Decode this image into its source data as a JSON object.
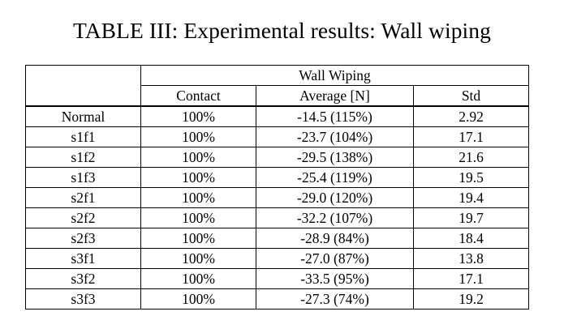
{
  "caption": "TABLE III: Experimental results: Wall wiping",
  "table": {
    "group_header": "Wall Wiping",
    "column_headers": [
      "Contact",
      "Average [N]",
      "Std"
    ],
    "rows": [
      {
        "label": "Normal",
        "contact": "100%",
        "average": "-14.5 (115%)",
        "std": "2.92"
      },
      {
        "label": "s1f1",
        "contact": "100%",
        "average": "-23.7 (104%)",
        "std": "17.1"
      },
      {
        "label": "s1f2",
        "contact": "100%",
        "average": "-29.5 (138%)",
        "std": "21.6"
      },
      {
        "label": "s1f3",
        "contact": "100%",
        "average": "-25.4 (119%)",
        "std": "19.5"
      },
      {
        "label": "s2f1",
        "contact": "100%",
        "average": "-29.0 (120%)",
        "std": "19.4"
      },
      {
        "label": "s2f2",
        "contact": "100%",
        "average": "-32.2 (107%)",
        "std": "19.7"
      },
      {
        "label": "s2f3",
        "contact": "100%",
        "average": "-28.9 (84%)",
        "std": "18.4"
      },
      {
        "label": "s3f1",
        "contact": "100%",
        "average": "-27.0 (87%)",
        "std": "13.8"
      },
      {
        "label": "s3f2",
        "contact": "100%",
        "average": "-33.5 (95%)",
        "std": "17.1"
      },
      {
        "label": "s3f3",
        "contact": "100%",
        "average": "-27.3 (74%)",
        "std": "19.2"
      }
    ]
  }
}
